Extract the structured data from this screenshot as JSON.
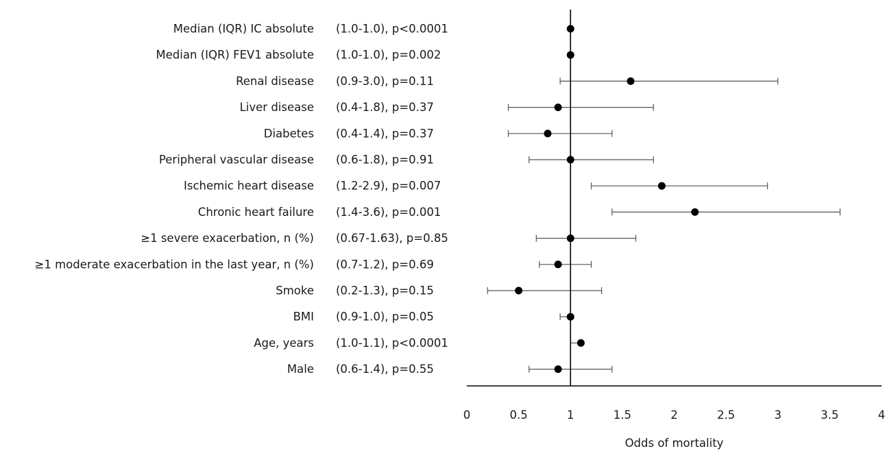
{
  "chart_data": {
    "type": "forest",
    "xlabel": "Odds of mortality",
    "xlim": [
      0,
      4
    ],
    "xticks": [
      0,
      0.5,
      1,
      1.5,
      2,
      2.5,
      3,
      3.5,
      4
    ],
    "reference_line": 1,
    "grid": false,
    "marker_color": "#000000",
    "rows": [
      {
        "label": "Median (IQR) IC absolute",
        "ci_text": "(1.0-1.0),  p<0.0001",
        "or": 1.0,
        "lo": 1.0,
        "hi": 1.0
      },
      {
        "label": "Median (IQR) FEV1 absolute",
        "ci_text": "(1.0-1.0),  p=0.002",
        "or": 1.0,
        "lo": 1.0,
        "hi": 1.0
      },
      {
        "label": "Renal disease",
        "ci_text": "(0.9-3.0),  p=0.11",
        "or": 1.58,
        "lo": 0.9,
        "hi": 3.0
      },
      {
        "label": "Liver disease",
        "ci_text": "(0.4-1.8),  p=0.37",
        "or": 0.88,
        "lo": 0.4,
        "hi": 1.8
      },
      {
        "label": "Diabetes",
        "ci_text": "(0.4-1.4),  p=0.37",
        "or": 0.78,
        "lo": 0.4,
        "hi": 1.4
      },
      {
        "label": "Peripheral vascular disease",
        "ci_text": "(0.6-1.8),  p=0.91",
        "or": 1.0,
        "lo": 0.6,
        "hi": 1.8
      },
      {
        "label": "Ischemic heart disease",
        "ci_text": "(1.2-2.9),  p=0.007",
        "or": 1.88,
        "lo": 1.2,
        "hi": 2.9
      },
      {
        "label": "Chronic heart failure",
        "ci_text": "(1.4-3.6),  p=0.001",
        "or": 2.2,
        "lo": 1.4,
        "hi": 3.6
      },
      {
        "label": "≥1 severe exacerbation, n (%)",
        "ci_text": "(0.67-1.63),  p=0.85",
        "or": 1.0,
        "lo": 0.67,
        "hi": 1.63
      },
      {
        "label": "≥1 moderate exacerbation in the last year, n (%)",
        "ci_text": "(0.7-1.2),  p=0.69",
        "or": 0.88,
        "lo": 0.7,
        "hi": 1.2
      },
      {
        "label": "Smoke",
        "ci_text": "(0.2-1.3),  p=0.15",
        "or": 0.5,
        "lo": 0.2,
        "hi": 1.3
      },
      {
        "label": "BMI",
        "ci_text": "(0.9-1.0),  p=0.05",
        "or": 1.0,
        "lo": 0.9,
        "hi": 1.0
      },
      {
        "label": "Age, years",
        "ci_text": "(1.0-1.1),  p<0.0001",
        "or": 1.1,
        "lo": 1.0,
        "hi": 1.1
      },
      {
        "label": "Male",
        "ci_text": "(0.6-1.4),  p=0.55",
        "or": 0.88,
        "lo": 0.6,
        "hi": 1.4
      }
    ]
  }
}
